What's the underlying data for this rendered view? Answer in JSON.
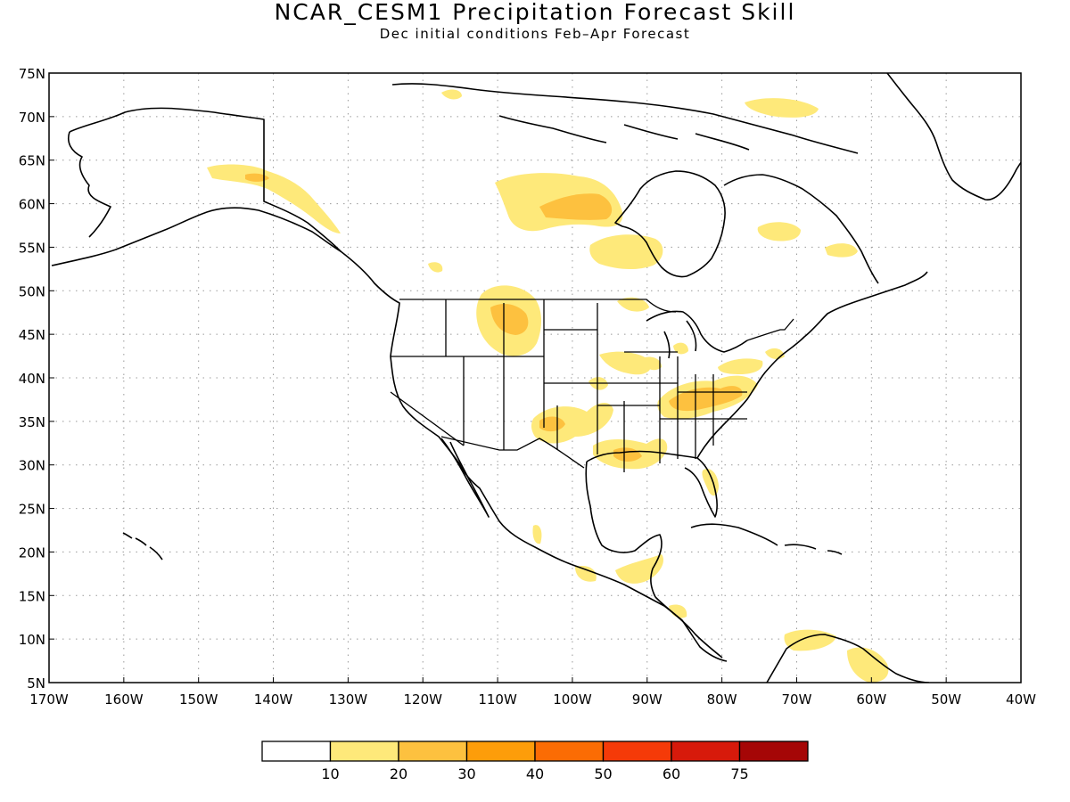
{
  "title": "NCAR_CESM1 Precipitation Forecast Skill",
  "subtitle": "Dec initial conditions   Feb–Apr Forecast",
  "map": {
    "lat_labels": [
      "75N",
      "70N",
      "65N",
      "60N",
      "55N",
      "50N",
      "45N",
      "40N",
      "35N",
      "30N",
      "25N",
      "20N",
      "15N",
      "10N",
      "5N"
    ],
    "lon_labels": [
      "170W",
      "160W",
      "150W",
      "140W",
      "130W",
      "120W",
      "110W",
      "100W",
      "90W",
      "80W",
      "70W",
      "60W",
      "50W",
      "40W"
    ],
    "lat_range": [
      5,
      75
    ],
    "lon_range": [
      -170,
      -40
    ],
    "grid": "dotted"
  },
  "legend": {
    "colors": [
      "#ffffff",
      "#fee97a",
      "#fdc13f",
      "#fd9d0a",
      "#fb6c04",
      "#f53a08",
      "#d71a0b",
      "#a50606"
    ],
    "labels": [
      "10",
      "20",
      "30",
      "40",
      "50",
      "60",
      "75"
    ]
  },
  "colors": {
    "coast": "#000000",
    "grid": "#999999"
  }
}
